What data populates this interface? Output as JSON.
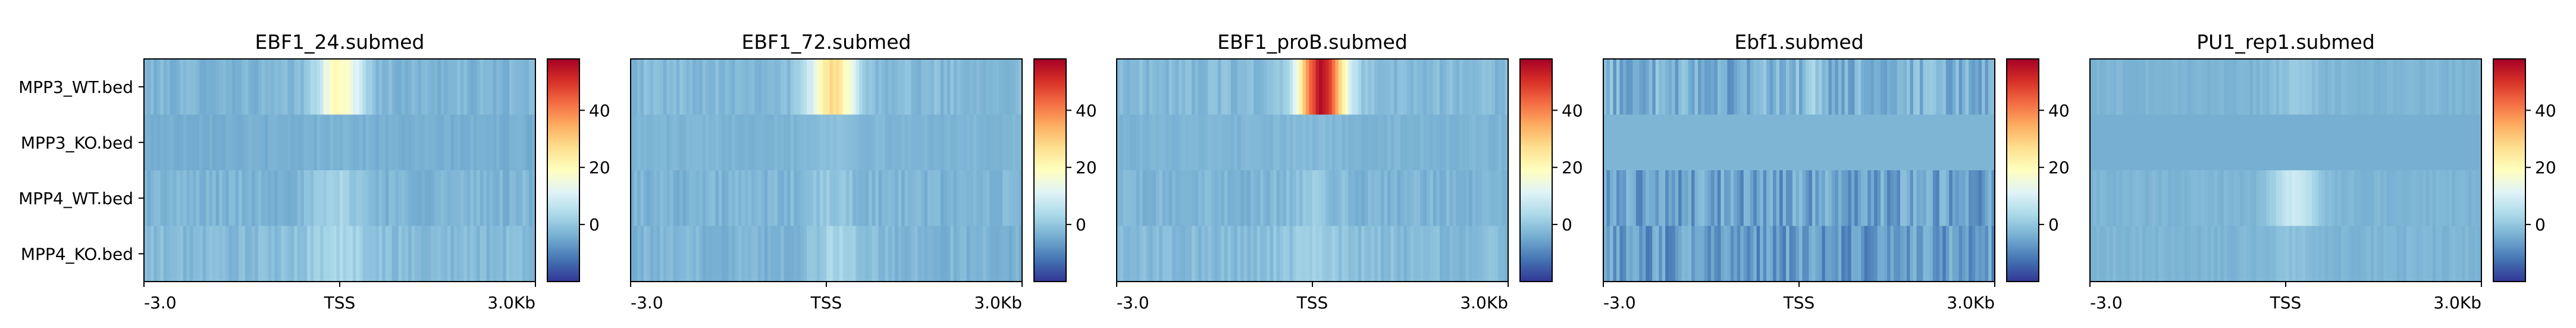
{
  "chart_data": [
    {
      "type": "heatmap",
      "title": "EBF1_24.submed",
      "rows": [
        "MPP3_WT.bed",
        "MPP3_KO.bed",
        "MPP4_WT.bed",
        "MPP4_KO.bed"
      ],
      "x_ticks": [
        "-3.0",
        "TSS",
        "3.0Kb"
      ],
      "x_range_kb": [
        -3.0,
        3.0
      ],
      "colorbar": {
        "colormap": "RdYlBu_r",
        "ticks": [
          0,
          20,
          40
        ],
        "range": [
          -20,
          58
        ]
      },
      "values_profile": {
        "MPP3_WT.bed": {
          "background": -3,
          "peak_center_kb": 0.0,
          "peak_width_kb": 0.25,
          "peak_value": 20,
          "noise": 2
        },
        "MPP3_KO.bed": {
          "background": -4,
          "peak_center_kb": 0.0,
          "peak_width_kb": 0.3,
          "peak_value": -3,
          "noise": 1
        },
        "MPP4_WT.bed": {
          "background": -3,
          "peak_center_kb": 0.0,
          "peak_width_kb": 0.3,
          "peak_value": 2,
          "noise": 2
        },
        "MPP4_KO.bed": {
          "background": -2,
          "peak_center_kb": 0.0,
          "peak_width_kb": 0.4,
          "peak_value": 3,
          "noise": 2
        }
      }
    },
    {
      "type": "heatmap",
      "title": "EBF1_72.submed",
      "rows": [
        "MPP3_WT.bed",
        "MPP3_KO.bed",
        "MPP4_WT.bed",
        "MPP4_KO.bed"
      ],
      "x_ticks": [
        "-3.0",
        "TSS",
        "3.0Kb"
      ],
      "x_range_kb": [
        -3.0,
        3.0
      ],
      "colorbar": {
        "colormap": "RdYlBu_r",
        "ticks": [
          0,
          20,
          40
        ],
        "range": [
          -20,
          58
        ]
      },
      "values_profile": {
        "MPP3_WT.bed": {
          "background": -2,
          "peak_center_kb": 0.1,
          "peak_width_kb": 0.25,
          "peak_value": 27,
          "noise": 2
        },
        "MPP3_KO.bed": {
          "background": -3,
          "peak_center_kb": 0.1,
          "peak_width_kb": 0.3,
          "peak_value": -1,
          "noise": 1
        },
        "MPP4_WT.bed": {
          "background": -3,
          "peak_center_kb": 0.1,
          "peak_width_kb": 0.3,
          "peak_value": 0,
          "noise": 2
        },
        "MPP4_KO.bed": {
          "background": -3,
          "peak_center_kb": 0.2,
          "peak_width_kb": 0.3,
          "peak_value": 3,
          "noise": 2
        }
      }
    },
    {
      "type": "heatmap",
      "title": "EBF1_proB.submed",
      "rows": [
        "MPP3_WT.bed",
        "MPP3_KO.bed",
        "MPP4_WT.bed",
        "MPP4_KO.bed"
      ],
      "x_ticks": [
        "-3.0",
        "TSS",
        "3.0Kb"
      ],
      "x_range_kb": [
        -3.0,
        3.0
      ],
      "colorbar": {
        "colormap": "RdYlBu_r",
        "ticks": [
          0,
          20,
          40
        ],
        "range": [
          -20,
          58
        ]
      },
      "values_profile": {
        "MPP3_WT.bed": {
          "background": -2,
          "peak_center_kb": 0.15,
          "peak_width_kb": 0.25,
          "peak_value": 55,
          "noise": 2
        },
        "MPP3_KO.bed": {
          "background": -3,
          "peak_center_kb": 0.0,
          "peak_width_kb": 0.3,
          "peak_value": -2,
          "noise": 1
        },
        "MPP4_WT.bed": {
          "background": -3,
          "peak_center_kb": 0.0,
          "peak_width_kb": 0.3,
          "peak_value": 0,
          "noise": 2
        },
        "MPP4_KO.bed": {
          "background": -2,
          "peak_center_kb": 0.0,
          "peak_width_kb": 0.4,
          "peak_value": 1,
          "noise": 2
        }
      }
    },
    {
      "type": "heatmap",
      "title": "Ebf1.submed",
      "rows": [
        "MPP3_WT.bed",
        "MPP3_KO.bed",
        "MPP4_WT.bed",
        "MPP4_KO.bed"
      ],
      "x_ticks": [
        "-3.0",
        "TSS",
        "3.0Kb"
      ],
      "x_range_kb": [
        -3.0,
        3.0
      ],
      "colorbar": {
        "colormap": "RdYlBu_r",
        "ticks": [
          0,
          20,
          40
        ],
        "range": [
          -20,
          58
        ]
      },
      "values_profile": {
        "MPP3_WT.bed": {
          "background": -4,
          "peak_center_kb": 0.15,
          "peak_width_kb": 0.08,
          "peak_value": 2,
          "noise": 5
        },
        "MPP3_KO.bed": {
          "background": -3,
          "peak_center_kb": 0.0,
          "peak_width_kb": 0.3,
          "peak_value": -3,
          "noise": 0
        },
        "MPP4_WT.bed": {
          "background": -6,
          "peak_center_kb": 0.0,
          "peak_width_kb": 0.3,
          "peak_value": -6,
          "noise": 5
        },
        "MPP4_KO.bed": {
          "background": -7,
          "peak_center_kb": 0.0,
          "peak_width_kb": 0.3,
          "peak_value": -7,
          "noise": 5
        }
      }
    },
    {
      "type": "heatmap",
      "title": "PU1_rep1.submed",
      "rows": [
        "MPP3_WT.bed",
        "MPP3_KO.bed",
        "MPP4_WT.bed",
        "MPP4_KO.bed"
      ],
      "x_ticks": [
        "-3.0",
        "TSS",
        "3.0Kb"
      ],
      "x_range_kb": [
        -3.0,
        3.0
      ],
      "colorbar": {
        "colormap": "RdYlBu_r",
        "ticks": [
          0,
          20,
          40
        ],
        "range": [
          -20,
          58
        ]
      },
      "values_profile": {
        "MPP3_WT.bed": {
          "background": -3,
          "peak_center_kb": 0.15,
          "peak_width_kb": 0.25,
          "peak_value": 0,
          "noise": 1
        },
        "MPP3_KO.bed": {
          "background": -4,
          "peak_center_kb": 0.0,
          "peak_width_kb": 0.3,
          "peak_value": -4,
          "noise": 0
        },
        "MPP4_WT.bed": {
          "background": -3,
          "peak_center_kb": 0.15,
          "peak_width_kb": 0.25,
          "peak_value": 8,
          "noise": 1
        },
        "MPP4_KO.bed": {
          "background": -3,
          "peak_center_kb": 0.1,
          "peak_width_kb": 0.3,
          "peak_value": -1,
          "noise": 1
        }
      }
    }
  ]
}
